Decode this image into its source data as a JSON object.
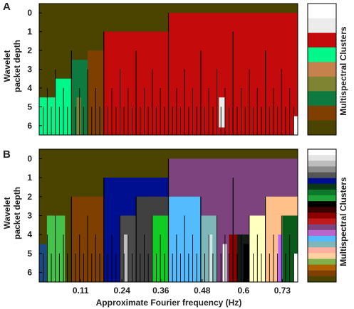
{
  "chart_data": [
    {
      "type": "heatmap",
      "panel": "A",
      "ylabel": "Wavelet packet depth",
      "yticks": [
        "0",
        "1",
        "2",
        "3",
        "4",
        "5",
        "6"
      ],
      "colorbar_label": "Multispectral Clusters",
      "background_color": "#4a4400",
      "palette": [
        "#ffffff",
        "#ececec",
        "#c40a0a",
        "#00f88a",
        "#c7814c",
        "#7e8432",
        "#0d7b3f",
        "#7e3f00",
        "#4a4400"
      ],
      "blocks": [
        {
          "x0": 0.0,
          "x1": 0.0625,
          "d0": 5,
          "d1": 7,
          "color": "#00f88a"
        },
        {
          "x0": 0.0625,
          "x1": 0.125,
          "d0": 4,
          "d1": 7,
          "color": "#00f88a"
        },
        {
          "x0": 0.125,
          "x1": 0.1875,
          "d0": 3,
          "d1": 7,
          "color": "#0d7b3f"
        },
        {
          "x0": 0.1875,
          "x1": 0.25,
          "d0": 2.5,
          "d1": 7,
          "color": "#7e3f00"
        },
        {
          "x0": 0.25,
          "x1": 0.5,
          "d0": 1.5,
          "d1": 7,
          "color": "#c40a0a"
        },
        {
          "x0": 0.5,
          "x1": 1.0,
          "d0": 0.5,
          "d1": 7,
          "color": "#c40a0a"
        },
        {
          "x0": 0.145,
          "x1": 0.162,
          "d0": 5,
          "d1": 7,
          "color": "#7e8432"
        },
        {
          "x0": 0.695,
          "x1": 0.718,
          "d0": 5,
          "d1": 6.6,
          "color": "#ececec"
        },
        {
          "x0": 0.985,
          "x1": 1.0,
          "d0": 6,
          "d1": 7,
          "color": "#ffffff"
        }
      ]
    },
    {
      "type": "heatmap",
      "panel": "B",
      "ylabel": "Wavelet packet depth",
      "yticks": [
        "0",
        "1",
        "2",
        "3",
        "4",
        "5",
        "6"
      ],
      "xlabel": "Approximate Fourier frequency (Hz)",
      "xticks": [
        "0.11",
        "0.24",
        "0.36",
        "0.48",
        "0.6",
        "0.73"
      ],
      "colorbar_label": "Multispectral Clusters",
      "background_color": "#4a4400",
      "palette": [
        "#ffffff",
        "#e4e4e4",
        "#bdbdbd",
        "#8c8c8c",
        "#555555",
        "#000f8f",
        "#0a3a14",
        "#0c7a2a",
        "#1ea53a",
        "#000000",
        "#3a0000",
        "#8c0000",
        "#c21a1a",
        "#7d437f",
        "#bb66cc",
        "#55bbff",
        "#7fb6b8",
        "#ffb0a0",
        "#ffd0a0",
        "#7fb04a",
        "#b06000",
        "#7e3f00",
        "#4a4400"
      ],
      "blocks": [
        {
          "x0": 0.0,
          "x1": 0.03,
          "d0": 5,
          "d1": 7,
          "color": "#1a4a80"
        },
        {
          "x0": 0.03,
          "x1": 0.1,
          "d0": 3.5,
          "d1": 7,
          "color": "#45c24a"
        },
        {
          "x0": 0.125,
          "x1": 0.25,
          "d0": 2.5,
          "d1": 7,
          "color": "#7e3f00"
        },
        {
          "x0": 0.25,
          "x1": 0.5,
          "d0": 1.5,
          "d1": 7,
          "color": "#000f8f"
        },
        {
          "x0": 0.5,
          "x1": 1.0,
          "d0": 0.5,
          "d1": 7,
          "color": "#7d437f"
        },
        {
          "x0": 0.375,
          "x1": 0.5,
          "d0": 2.5,
          "d1": 7,
          "color": "#404040"
        },
        {
          "x0": 0.3125,
          "x1": 0.375,
          "d0": 3.5,
          "d1": 7,
          "color": "#4a4a4a"
        },
        {
          "x0": 0.328,
          "x1": 0.343,
          "d0": 4.5,
          "d1": 7,
          "color": "#c0c0c0"
        },
        {
          "x0": 0.4375,
          "x1": 0.5,
          "d0": 3.5,
          "d1": 7,
          "color": "#11cc22"
        },
        {
          "x0": 0.5,
          "x1": 0.625,
          "d0": 2.5,
          "d1": 7,
          "color": "#55bbff"
        },
        {
          "x0": 0.625,
          "x1": 0.6875,
          "d0": 3.5,
          "d1": 7,
          "color": "#7fb6b8"
        },
        {
          "x0": 0.655,
          "x1": 0.67,
          "d0": 4.5,
          "d1": 7,
          "color": "#d0e6e6"
        },
        {
          "x0": 0.71,
          "x1": 0.725,
          "d0": 5,
          "d1": 7,
          "color": "#ffffff"
        },
        {
          "x0": 0.734,
          "x1": 0.765,
          "d0": 4.5,
          "d1": 7,
          "color": "#8c0000"
        },
        {
          "x0": 0.765,
          "x1": 0.813,
          "d0": 4.5,
          "d1": 7,
          "color": "#141a14"
        },
        {
          "x0": 0.8125,
          "x1": 0.875,
          "d0": 3.5,
          "d1": 7,
          "color": "#ffffc0"
        },
        {
          "x0": 0.875,
          "x1": 1.0,
          "d0": 2.5,
          "d1": 7,
          "color": "#ffc08a"
        },
        {
          "x0": 0.94,
          "x1": 1.0,
          "d0": 3.5,
          "d1": 7,
          "color": "#0a5a1a"
        },
        {
          "x0": 0.924,
          "x1": 0.94,
          "d0": 4.5,
          "d1": 7,
          "color": "#bb66ff"
        },
        {
          "x0": 0.985,
          "x1": 1.0,
          "d0": 5.5,
          "d1": 7,
          "color": "#ffffff"
        },
        {
          "x0": 0.79,
          "x1": 0.812,
          "d0": 5,
          "d1": 7,
          "color": "#000000"
        }
      ]
    }
  ],
  "labels": {
    "panel_a": "A",
    "panel_b": "B",
    "ylabel_line1": "Wavelet",
    "ylabel_line2": "packet depth",
    "colorbar_label": "Multispectral Clusters",
    "xlabel": "Approximate Fourier frequency (Hz)"
  }
}
